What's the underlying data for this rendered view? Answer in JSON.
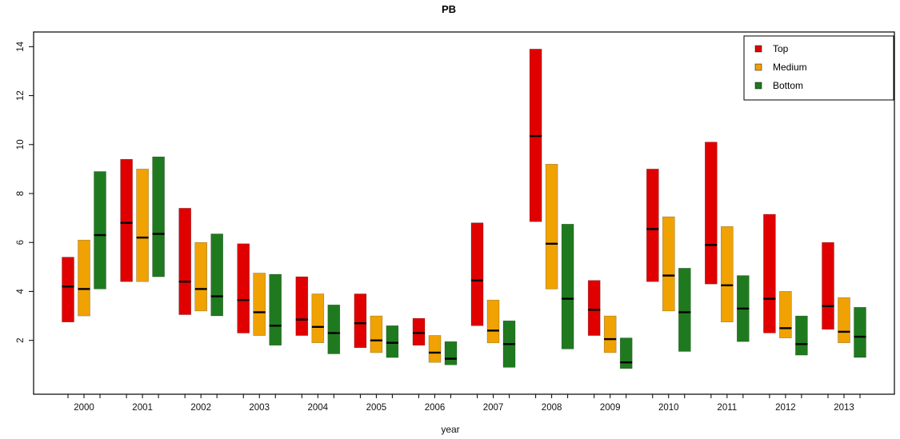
{
  "chart_data": {
    "type": "bar",
    "subtype": "floating range bars with median lines (R-style grouped ranges)",
    "title": "PB",
    "xlabel": "year",
    "ylabel": "",
    "ylim": [
      -0.2,
      14.6
    ],
    "yticks": [
      2,
      4,
      6,
      8,
      10,
      12,
      14
    ],
    "grid": false,
    "legend_position": "top-right",
    "median_color": "#000000",
    "categories": [
      "2000",
      "2001",
      "2002",
      "2003",
      "2004",
      "2005",
      "2006",
      "2007",
      "2008",
      "2009",
      "2010",
      "2011",
      "2012",
      "2013"
    ],
    "series": [
      {
        "name": "Top",
        "color": "#e00000",
        "ranges": [
          [
            2.75,
            5.4
          ],
          [
            4.4,
            9.4
          ],
          [
            3.05,
            7.4
          ],
          [
            2.3,
            5.95
          ],
          [
            2.2,
            4.6
          ],
          [
            1.7,
            3.9
          ],
          [
            1.8,
            2.9
          ],
          [
            2.6,
            6.8
          ],
          [
            6.85,
            13.9
          ],
          [
            2.2,
            4.45
          ],
          [
            4.4,
            9.0
          ],
          [
            4.3,
            10.1
          ],
          [
            2.3,
            7.15
          ],
          [
            2.45,
            6.0
          ]
        ],
        "medians": [
          4.2,
          6.8,
          4.4,
          3.65,
          2.85,
          2.7,
          2.3,
          4.45,
          10.35,
          3.25,
          6.55,
          5.9,
          3.7,
          3.4
        ]
      },
      {
        "name": "Medium",
        "color": "#f0a202",
        "ranges": [
          [
            3.0,
            6.1
          ],
          [
            4.4,
            9.0
          ],
          [
            3.2,
            6.0
          ],
          [
            2.2,
            4.75
          ],
          [
            1.9,
            3.9
          ],
          [
            1.5,
            3.0
          ],
          [
            1.1,
            2.2
          ],
          [
            1.9,
            3.65
          ],
          [
            4.1,
            9.2
          ],
          [
            1.5,
            3.0
          ],
          [
            3.2,
            7.05
          ],
          [
            2.75,
            6.65
          ],
          [
            2.1,
            4.0
          ],
          [
            1.9,
            3.75
          ]
        ],
        "medians": [
          4.1,
          6.2,
          4.1,
          3.15,
          2.55,
          2.0,
          1.5,
          2.4,
          5.95,
          2.05,
          4.65,
          4.25,
          2.5,
          2.35
        ]
      },
      {
        "name": "Bottom",
        "color": "#1f7a1f",
        "ranges": [
          [
            4.1,
            8.9
          ],
          [
            4.6,
            9.5
          ],
          [
            3.0,
            6.35
          ],
          [
            1.8,
            4.7
          ],
          [
            1.45,
            3.45
          ],
          [
            1.3,
            2.6
          ],
          [
            1.0,
            1.95
          ],
          [
            0.9,
            2.8
          ],
          [
            1.65,
            6.75
          ],
          [
            0.85,
            2.1
          ],
          [
            1.55,
            4.95
          ],
          [
            1.95,
            4.65
          ],
          [
            1.4,
            3.0
          ],
          [
            1.3,
            3.35
          ]
        ],
        "medians": [
          6.3,
          6.35,
          3.8,
          2.6,
          2.3,
          1.9,
          1.25,
          1.85,
          3.7,
          1.1,
          3.15,
          3.3,
          1.85,
          2.15
        ]
      }
    ]
  }
}
